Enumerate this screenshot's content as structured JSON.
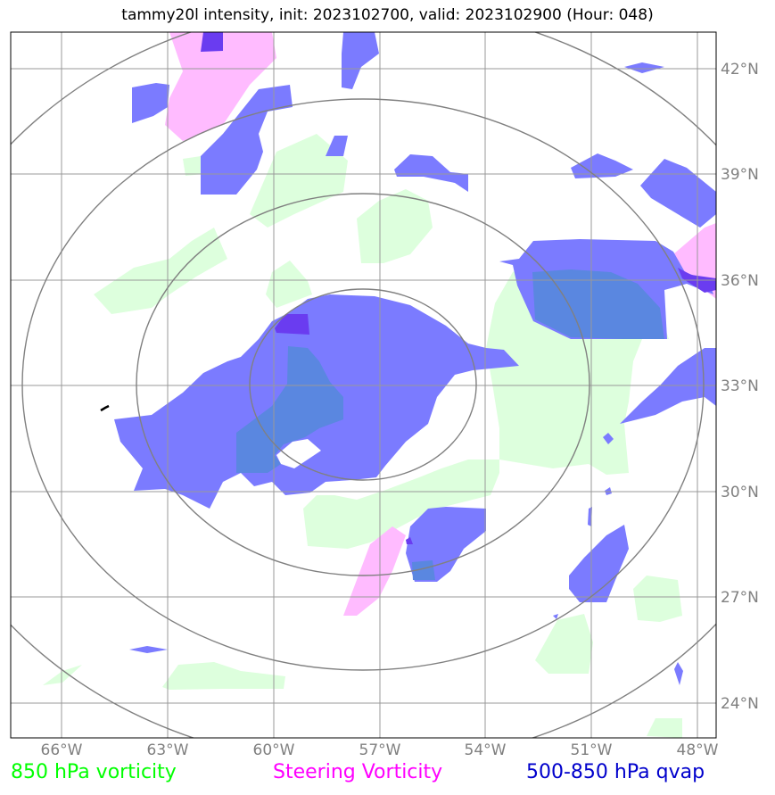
{
  "title": "tammy20l intensity, init: 2023102700, valid: 2023102900 (Hour: 048)",
  "axes": {
    "lon_labels": [
      "66°W",
      "63°W",
      "60°W",
      "57°W",
      "54°W",
      "51°W",
      "48°W"
    ],
    "lat_labels": [
      "42°N",
      "39°N",
      "36°N",
      "33°N",
      "30°N",
      "27°N",
      "24°N"
    ]
  },
  "legend": [
    {
      "label": "850 hPa vorticity",
      "color": "#00ff00"
    },
    {
      "label": "Steering Vorticity",
      "color": "#ff00ff"
    },
    {
      "label": "500-850 hPa qvap",
      "color": "#0000cc"
    }
  ],
  "colors": {
    "vorticity_fill": "#ddffdd",
    "steering_fill": "#ffbbff",
    "qvap_fill": "#7b7bff",
    "overlap_fill": "#5a87e0",
    "overlap_magenta": "#6a3cf0",
    "grid": "#999999",
    "range_rings": "#808080"
  }
}
